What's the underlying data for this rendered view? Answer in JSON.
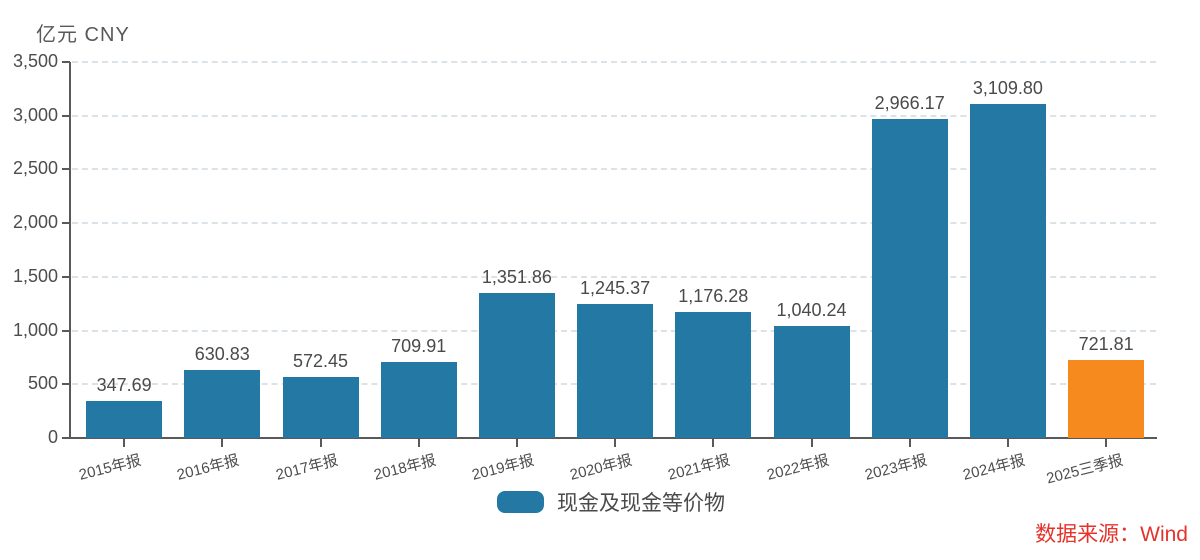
{
  "header": {
    "unit_label": "亿元  CNY"
  },
  "legend": {
    "label": "现金及现金等价物",
    "swatch_color": "#2478A4"
  },
  "source": {
    "label": "数据来源：Wind",
    "color": "#E5332C"
  },
  "colors": {
    "bar_default": "#2478A4",
    "bar_highlight": "#F68A1E",
    "axis": "#595959",
    "gridline": "#DBE3E9",
    "text": "#4A4A4A"
  },
  "chart_data": {
    "type": "bar",
    "title": "",
    "xlabel": "",
    "ylabel": "亿元 CNY",
    "categories": [
      "2015年报",
      "2016年报",
      "2017年报",
      "2018年报",
      "2019年报",
      "2020年报",
      "2021年报",
      "2022年报",
      "2023年报",
      "2024年报",
      "2025三季报"
    ],
    "values": [
      347.69,
      630.83,
      572.45,
      709.91,
      1351.86,
      1245.37,
      1176.28,
      1040.24,
      2966.17,
      3109.8,
      721.81
    ],
    "value_labels": [
      "347.69",
      "630.83",
      "572.45",
      "709.91",
      "1,351.86",
      "1,245.37",
      "1,176.28",
      "1,040.24",
      "2,966.17",
      "3,109.80",
      "721.81"
    ],
    "bar_colors": [
      "#2478A4",
      "#2478A4",
      "#2478A4",
      "#2478A4",
      "#2478A4",
      "#2478A4",
      "#2478A4",
      "#2478A4",
      "#2478A4",
      "#2478A4",
      "#F68A1E"
    ],
    "ylim": [
      0,
      3500
    ],
    "ytick_interval": 500,
    "ytick_labels": [
      "0",
      "500",
      "1,000",
      "1,500",
      "2,000",
      "2,500",
      "3,000",
      "3,500"
    ],
    "grid": "horizontal-dashed",
    "legend_position": "bottom-center",
    "legend_entries": [
      "现金及现金等价物"
    ]
  }
}
